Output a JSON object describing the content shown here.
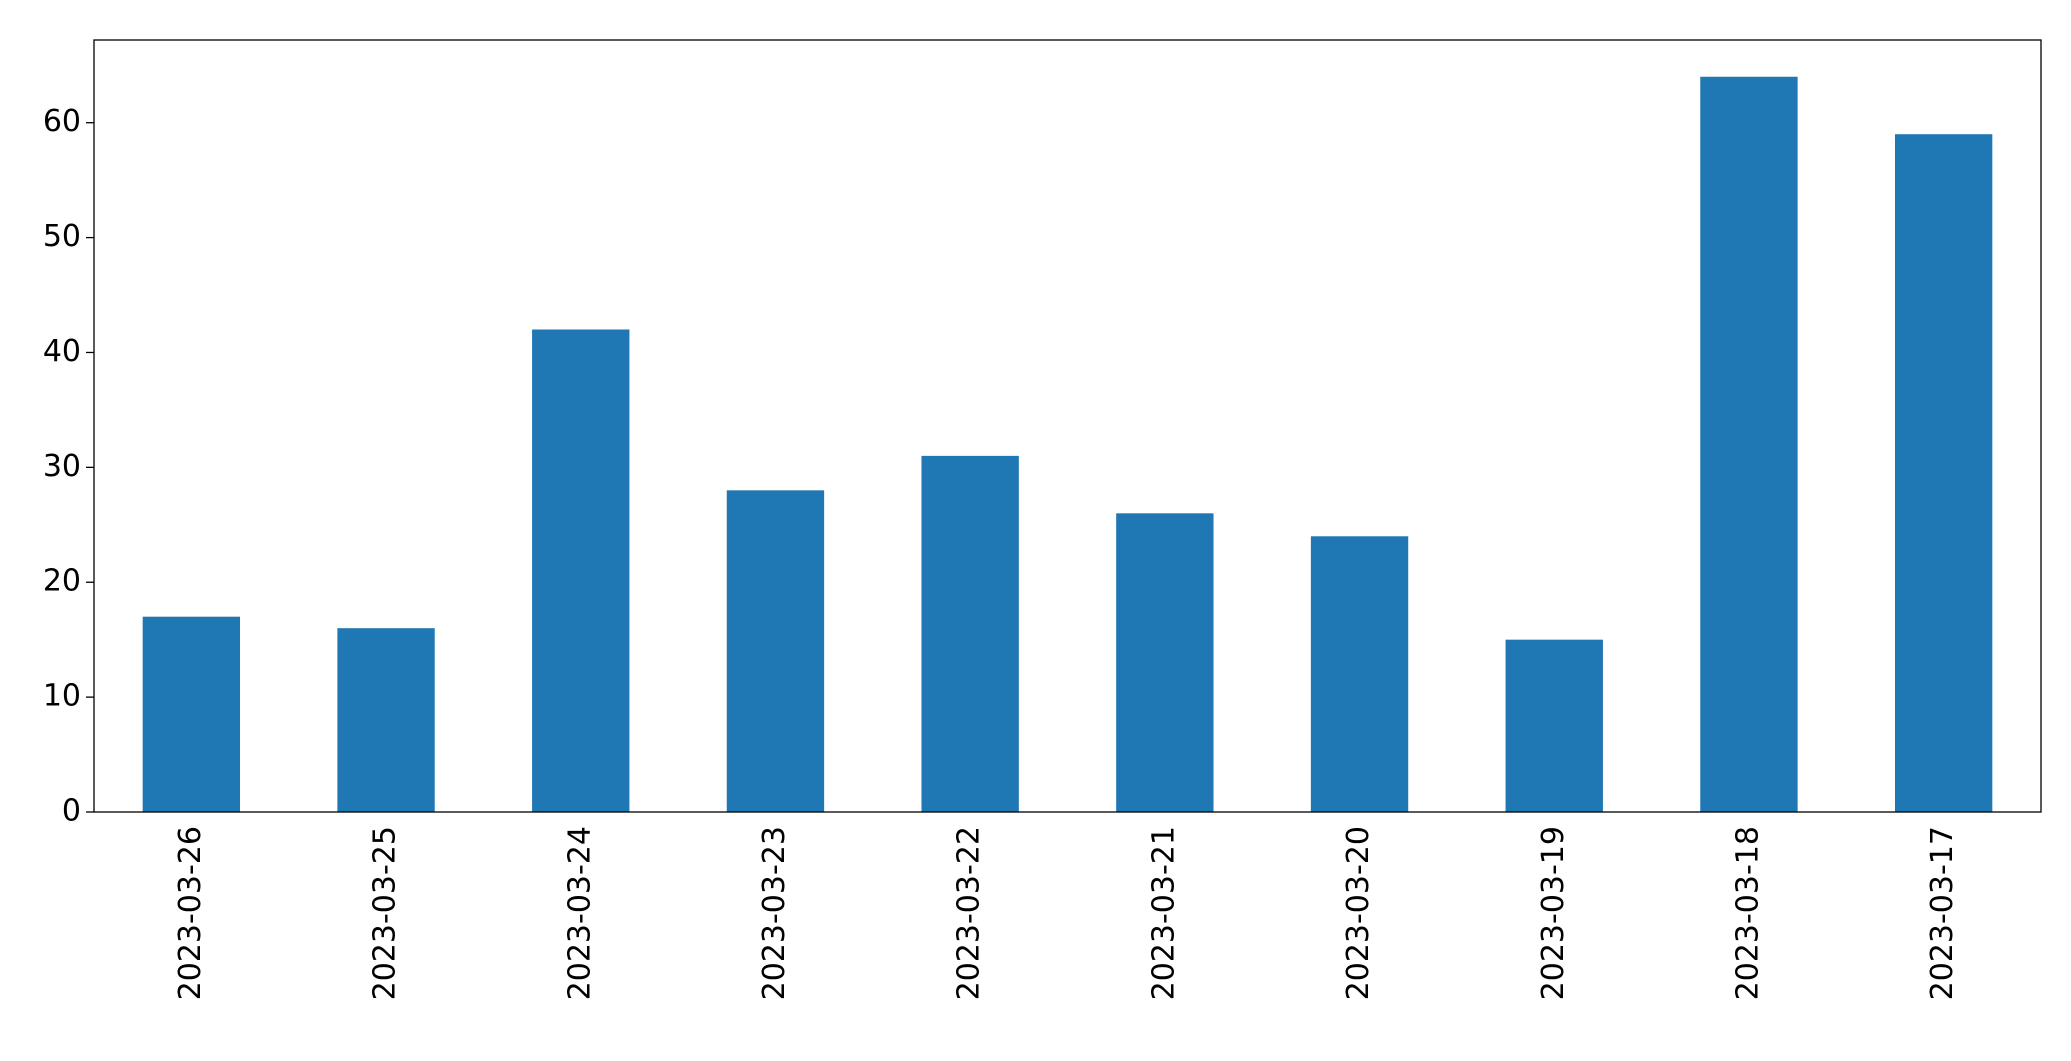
{
  "chart_data": {
    "type": "bar",
    "categories": [
      "2023-03-26",
      "2023-03-25",
      "2023-03-24",
      "2023-03-23",
      "2023-03-22",
      "2023-03-21",
      "2023-03-20",
      "2023-03-19",
      "2023-03-18",
      "2023-03-17"
    ],
    "values": [
      17,
      16,
      42,
      28,
      31,
      26,
      24,
      15,
      64,
      59
    ],
    "color": "#1f77b4",
    "ylim": [
      0,
      67.2
    ],
    "yticks": [
      0,
      10,
      20,
      30,
      40,
      50,
      60
    ],
    "grid": false
  }
}
